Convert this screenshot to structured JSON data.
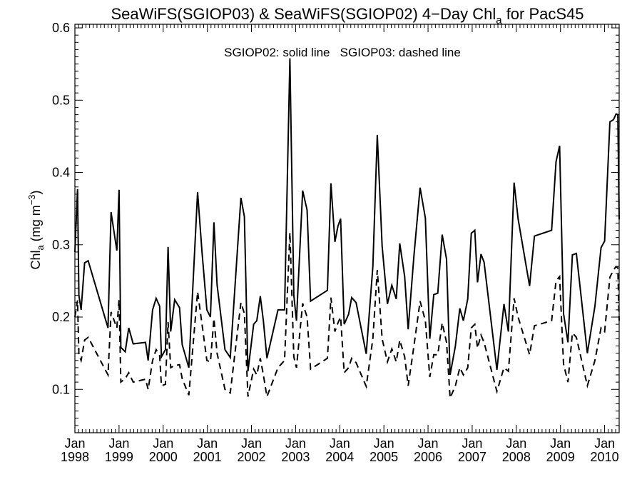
{
  "chart_data": {
    "type": "line",
    "title": {
      "main": "SeaWiFS(SGIOP03) & SeaWiFS(SGIOP02) 4−Day Chl",
      "sub": "a",
      "suffix": " for PacS45"
    },
    "ylabel": {
      "main": "Chl",
      "sub": "a",
      "unit_prefix": " (mg m",
      "sup": "−3",
      "unit_suffix": ")"
    },
    "xlabel": "",
    "annotation": "SGIOP02: solid line   SGIOP03: dashed line",
    "xlim": [
      1998.0,
      2010.33
    ],
    "ylim": [
      0.04,
      0.605
    ],
    "yticks": [
      0.1,
      0.2,
      0.3,
      0.4,
      0.5,
      0.6
    ],
    "ytick_labels": [
      "0.1",
      "0.2",
      "0.3",
      "0.4",
      "0.5",
      "0.6"
    ],
    "xticks": [
      1998,
      1999,
      2000,
      2001,
      2002,
      2003,
      2004,
      2005,
      2006,
      2007,
      2008,
      2009,
      2010
    ],
    "xtick_labels_top": [
      "Jan",
      "Jan",
      "Jan",
      "Jan",
      "Jan",
      "Jan",
      "Jan",
      "Jan",
      "Jan",
      "Jan",
      "Jan",
      "Jan",
      "Jan"
    ],
    "xtick_labels_bottom": [
      "1998",
      "1999",
      "2000",
      "2001",
      "2002",
      "2003",
      "2004",
      "2005",
      "2006",
      "2007",
      "2008",
      "2009",
      "2010"
    ],
    "series": [
      {
        "style": "solid",
        "points": [
          [
            1998.0,
            0.29
          ],
          [
            1998.06,
            0.377
          ],
          [
            1998.09,
            0.23
          ],
          [
            1998.14,
            0.21
          ],
          [
            1998.22,
            0.275
          ],
          [
            1998.3,
            0.278
          ],
          [
            1998.75,
            0.185
          ],
          [
            1998.82,
            0.345
          ],
          [
            1998.95,
            0.292
          ],
          [
            1999.0,
            0.376
          ],
          [
            1999.04,
            0.158
          ],
          [
            1999.14,
            0.152
          ],
          [
            1999.22,
            0.185
          ],
          [
            1999.32,
            0.163
          ],
          [
            1999.6,
            0.165
          ],
          [
            1999.66,
            0.14
          ],
          [
            1999.76,
            0.21
          ],
          [
            1999.84,
            0.226
          ],
          [
            1999.92,
            0.215
          ],
          [
            1999.96,
            0.145
          ],
          [
            2000.05,
            0.155
          ],
          [
            2000.11,
            0.297
          ],
          [
            2000.17,
            0.18
          ],
          [
            2000.26,
            0.224
          ],
          [
            2000.37,
            0.213
          ],
          [
            2000.43,
            0.162
          ],
          [
            2000.58,
            0.13
          ],
          [
            2000.78,
            0.373
          ],
          [
            2000.88,
            0.29
          ],
          [
            2000.99,
            0.21
          ],
          [
            2001.07,
            0.2
          ],
          [
            2001.15,
            0.331
          ],
          [
            2001.22,
            0.245
          ],
          [
            2001.4,
            0.155
          ],
          [
            2001.52,
            0.144
          ],
          [
            2001.76,
            0.365
          ],
          [
            2001.84,
            0.339
          ],
          [
            2001.92,
            0.125
          ],
          [
            2002.05,
            0.19
          ],
          [
            2002.12,
            0.195
          ],
          [
            2002.2,
            0.229
          ],
          [
            2002.27,
            0.195
          ],
          [
            2002.35,
            0.143
          ],
          [
            2002.6,
            0.21
          ],
          [
            2002.75,
            0.21
          ],
          [
            2002.87,
            0.558
          ],
          [
            2002.96,
            0.23
          ],
          [
            2003.02,
            0.195
          ],
          [
            2003.16,
            0.375
          ],
          [
            2003.26,
            0.348
          ],
          [
            2003.34,
            0.222
          ],
          [
            2003.72,
            0.237
          ],
          [
            2003.8,
            0.385
          ],
          [
            2003.89,
            0.304
          ],
          [
            2003.96,
            0.326
          ],
          [
            2004.02,
            0.336
          ],
          [
            2004.1,
            0.19
          ],
          [
            2004.2,
            0.204
          ],
          [
            2004.27,
            0.227
          ],
          [
            2004.37,
            0.22
          ],
          [
            2004.6,
            0.149
          ],
          [
            2004.75,
            0.27
          ],
          [
            2004.85,
            0.452
          ],
          [
            2004.96,
            0.298
          ],
          [
            2005.08,
            0.218
          ],
          [
            2005.18,
            0.244
          ],
          [
            2005.28,
            0.225
          ],
          [
            2005.36,
            0.302
          ],
          [
            2005.47,
            0.256
          ],
          [
            2005.55,
            0.183
          ],
          [
            2005.68,
            0.285
          ],
          [
            2005.82,
            0.379
          ],
          [
            2005.94,
            0.337
          ],
          [
            2006.04,
            0.17
          ],
          [
            2006.13,
            0.231
          ],
          [
            2006.22,
            0.233
          ],
          [
            2006.32,
            0.314
          ],
          [
            2006.42,
            0.28
          ],
          [
            2006.5,
            0.12
          ],
          [
            2006.62,
            0.16
          ],
          [
            2006.72,
            0.212
          ],
          [
            2006.8,
            0.195
          ],
          [
            2006.9,
            0.225
          ],
          [
            2006.98,
            0.316
          ],
          [
            2007.06,
            0.32
          ],
          [
            2007.12,
            0.248
          ],
          [
            2007.2,
            0.287
          ],
          [
            2007.27,
            0.276
          ],
          [
            2007.56,
            0.127
          ],
          [
            2007.72,
            0.218
          ],
          [
            2007.82,
            0.18
          ],
          [
            2007.95,
            0.386
          ],
          [
            2008.04,
            0.336
          ],
          [
            2008.3,
            0.243
          ],
          [
            2008.41,
            0.312
          ],
          [
            2008.8,
            0.32
          ],
          [
            2008.9,
            0.415
          ],
          [
            2008.98,
            0.437
          ],
          [
            2009.07,
            0.205
          ],
          [
            2009.17,
            0.165
          ],
          [
            2009.27,
            0.286
          ],
          [
            2009.36,
            0.288
          ],
          [
            2009.61,
            0.15
          ],
          [
            2009.78,
            0.215
          ],
          [
            2009.92,
            0.296
          ],
          [
            2010.0,
            0.305
          ],
          [
            2010.12,
            0.47
          ],
          [
            2010.2,
            0.473
          ],
          [
            2010.26,
            0.481
          ],
          [
            2010.3,
            0.48
          ],
          [
            2010.33,
            0.335
          ]
        ]
      },
      {
        "style": "dashed",
        "points": [
          [
            1998.0,
            0.2
          ],
          [
            1998.06,
            0.223
          ],
          [
            1998.09,
            0.148
          ],
          [
            1998.14,
            0.14
          ],
          [
            1998.22,
            0.168
          ],
          [
            1998.3,
            0.172
          ],
          [
            1998.75,
            0.12
          ],
          [
            1998.82,
            0.207
          ],
          [
            1998.95,
            0.185
          ],
          [
            1999.0,
            0.224
          ],
          [
            1999.04,
            0.11
          ],
          [
            1999.14,
            0.115
          ],
          [
            1999.22,
            0.123
          ],
          [
            1999.32,
            0.11
          ],
          [
            1999.6,
            0.114
          ],
          [
            1999.66,
            0.1
          ],
          [
            1999.76,
            0.14
          ],
          [
            1999.84,
            0.155
          ],
          [
            1999.92,
            0.147
          ],
          [
            1999.96,
            0.105
          ],
          [
            2000.05,
            0.107
          ],
          [
            2000.11,
            0.193
          ],
          [
            2000.17,
            0.13
          ],
          [
            2000.26,
            0.133
          ],
          [
            2000.37,
            0.134
          ],
          [
            2000.43,
            0.115
          ],
          [
            2000.58,
            0.092
          ],
          [
            2000.78,
            0.235
          ],
          [
            2000.88,
            0.19
          ],
          [
            2000.99,
            0.14
          ],
          [
            2001.07,
            0.138
          ],
          [
            2001.15,
            0.198
          ],
          [
            2001.22,
            0.15
          ],
          [
            2001.4,
            0.1
          ],
          [
            2001.52,
            0.095
          ],
          [
            2001.76,
            0.22
          ],
          [
            2001.84,
            0.205
          ],
          [
            2001.92,
            0.09
          ],
          [
            2002.05,
            0.128
          ],
          [
            2002.12,
            0.12
          ],
          [
            2002.2,
            0.143
          ],
          [
            2002.27,
            0.12
          ],
          [
            2002.35,
            0.09
          ],
          [
            2002.6,
            0.13
          ],
          [
            2002.75,
            0.14
          ],
          [
            2002.87,
            0.317
          ],
          [
            2002.96,
            0.145
          ],
          [
            2003.02,
            0.13
          ],
          [
            2003.16,
            0.219
          ],
          [
            2003.26,
            0.2
          ],
          [
            2003.34,
            0.128
          ],
          [
            2003.72,
            0.143
          ],
          [
            2003.8,
            0.227
          ],
          [
            2003.89,
            0.18
          ],
          [
            2003.96,
            0.192
          ],
          [
            2004.02,
            0.2
          ],
          [
            2004.1,
            0.123
          ],
          [
            2004.2,
            0.13
          ],
          [
            2004.27,
            0.143
          ],
          [
            2004.37,
            0.137
          ],
          [
            2004.6,
            0.104
          ],
          [
            2004.75,
            0.17
          ],
          [
            2004.85,
            0.265
          ],
          [
            2004.96,
            0.17
          ],
          [
            2005.08,
            0.138
          ],
          [
            2005.18,
            0.156
          ],
          [
            2005.28,
            0.138
          ],
          [
            2005.36,
            0.168
          ],
          [
            2005.47,
            0.145
          ],
          [
            2005.55,
            0.105
          ],
          [
            2005.68,
            0.16
          ],
          [
            2005.82,
            0.222
          ],
          [
            2005.94,
            0.195
          ],
          [
            2006.04,
            0.117
          ],
          [
            2006.13,
            0.148
          ],
          [
            2006.22,
            0.148
          ],
          [
            2006.32,
            0.192
          ],
          [
            2006.42,
            0.165
          ],
          [
            2006.5,
            0.088
          ],
          [
            2006.62,
            0.105
          ],
          [
            2006.72,
            0.13
          ],
          [
            2006.8,
            0.12
          ],
          [
            2006.9,
            0.13
          ],
          [
            2006.98,
            0.185
          ],
          [
            2007.06,
            0.19
          ],
          [
            2007.12,
            0.157
          ],
          [
            2007.2,
            0.175
          ],
          [
            2007.27,
            0.165
          ],
          [
            2007.56,
            0.097
          ],
          [
            2007.72,
            0.13
          ],
          [
            2007.82,
            0.125
          ],
          [
            2007.95,
            0.226
          ],
          [
            2008.04,
            0.2
          ],
          [
            2008.3,
            0.148
          ],
          [
            2008.41,
            0.188
          ],
          [
            2008.8,
            0.195
          ],
          [
            2008.9,
            0.25
          ],
          [
            2008.98,
            0.256
          ],
          [
            2009.07,
            0.135
          ],
          [
            2009.17,
            0.11
          ],
          [
            2009.27,
            0.178
          ],
          [
            2009.36,
            0.172
          ],
          [
            2009.61,
            0.105
          ],
          [
            2009.78,
            0.14
          ],
          [
            2009.92,
            0.185
          ],
          [
            2010.0,
            0.18
          ],
          [
            2010.12,
            0.255
          ],
          [
            2010.2,
            0.265
          ],
          [
            2010.26,
            0.27
          ],
          [
            2010.3,
            0.268
          ],
          [
            2010.33,
            0.195
          ]
        ]
      }
    ]
  }
}
